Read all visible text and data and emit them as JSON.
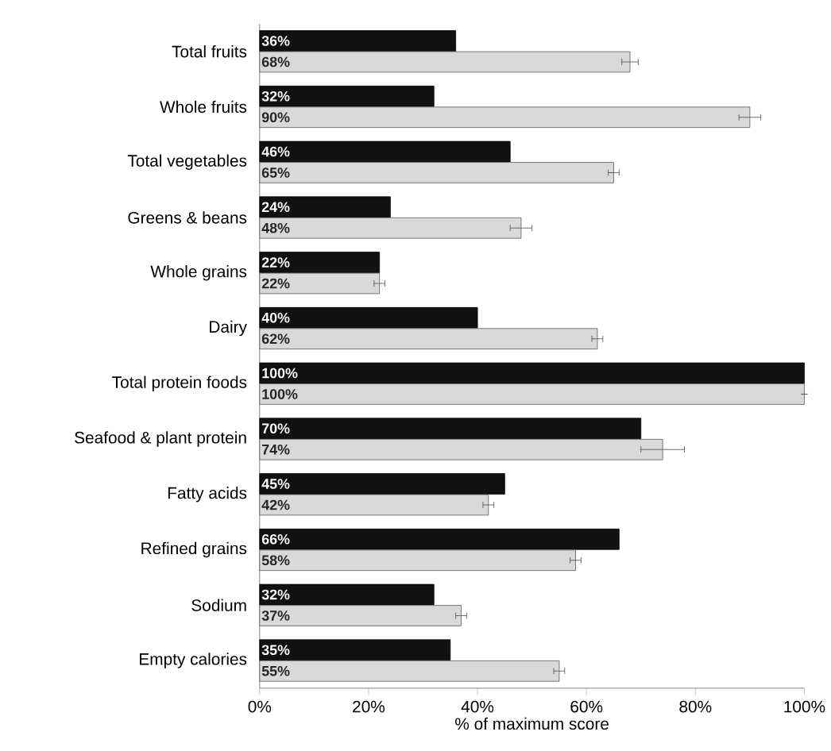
{
  "chart_data": {
    "type": "bar",
    "orientation": "horizontal",
    "xlabel": "% of maximum score",
    "categories": [
      "Total fruits",
      "Whole fruits",
      "Total vegetables",
      "Greens & beans",
      "Whole grains",
      "Dairy",
      "Total protein foods",
      "Seafood & plant protein",
      "Fatty acids",
      "Refined grains",
      "Sodium",
      "Empty calories"
    ],
    "series": [
      {
        "color": "#111111",
        "values": [
          36,
          32,
          46,
          24,
          22,
          40,
          100,
          70,
          45,
          66,
          32,
          35
        ],
        "value_labels": [
          "36%",
          "32%",
          "46%",
          "24%",
          "22%",
          "40%",
          "100%",
          "70%",
          "45%",
          "66%",
          "32%",
          "35%"
        ]
      },
      {
        "color": "#d9d9d9",
        "values": [
          68,
          90,
          65,
          48,
          22,
          62,
          100,
          74,
          42,
          58,
          37,
          55
        ],
        "value_labels": [
          "68%",
          "90%",
          "65%",
          "48%",
          "22%",
          "62%",
          "100%",
          "74%",
          "42%",
          "58%",
          "37%",
          "55%"
        ],
        "errors": [
          1.5,
          2,
          1,
          2,
          1,
          1,
          null,
          4,
          1,
          1,
          1,
          1
        ]
      }
    ],
    "xlim": [
      0,
      100
    ],
    "xticks": [
      {
        "value": 0,
        "label": "0%"
      },
      {
        "value": 20,
        "label": "20%"
      },
      {
        "value": 40,
        "label": "40%"
      },
      {
        "value": 60,
        "label": "60%"
      },
      {
        "value": 80,
        "label": "80%"
      },
      {
        "value": 100,
        "label": "100%"
      }
    ],
    "grid": false
  }
}
